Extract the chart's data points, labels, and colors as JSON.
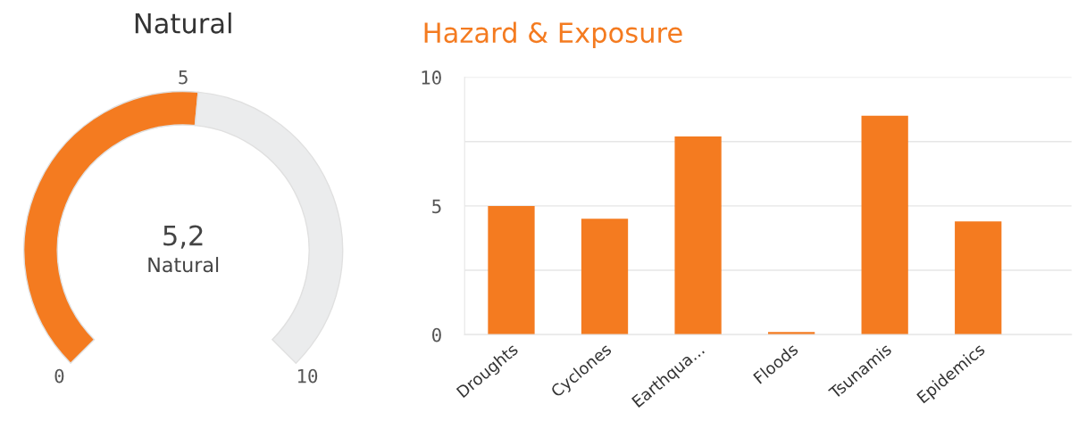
{
  "chart_data": [
    {
      "type": "donut",
      "title": "Natural",
      "categories": [
        null,
        null
      ],
      "values": [
        52,
        48
      ],
      "colors": [
        "#f47b20",
        "#ebeced"
      ],
      "annotations": [
        "5,2",
        "Natural",
        "0",
        "5",
        "10"
      ]
    },
    {
      "type": "bar",
      "title": "Hazard & Exposure",
      "categories": [
        "Droughts",
        "Cyclones",
        "Earthqua...",
        "Floods",
        "Tsunamis",
        "Epidemics"
      ],
      "values": [
        5.0,
        4.5,
        7.7,
        0.1,
        8.5,
        4.4
      ],
      "color": "#f47b20",
      "ylim": [
        0,
        10
      ],
      "yticks": [
        0,
        {
          "value": 2.5,
          "label": null
        },
        5,
        {
          "value": 7.5,
          "label": null
        },
        10
      ],
      "grid": "y"
    }
  ]
}
